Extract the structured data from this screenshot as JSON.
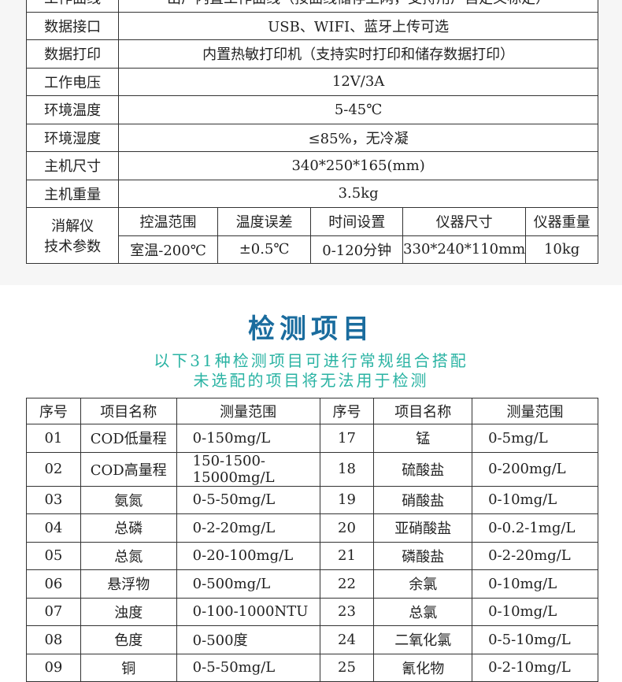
{
  "specs": {
    "rows": [
      {
        "label": "工作曲线",
        "value": "出厂内置工作曲线（按曲线储存上网，支持用户自定义标定）"
      },
      {
        "label": "数据接口",
        "value": "USB、WIFI、蓝牙上传可选"
      },
      {
        "label": "数据打印",
        "value": "内置热敏打印机（支持实时打印和储存数据打印）"
      },
      {
        "label": "工作电压",
        "value": "12V/3A"
      },
      {
        "label": "环境温度",
        "value": "5-45℃"
      },
      {
        "label": "环境湿度",
        "value": "≤85%，无冷凝"
      },
      {
        "label": "主机尺寸",
        "value": "340*250*165(mm)"
      },
      {
        "label": "主机重量",
        "value": "3.5kg"
      }
    ],
    "digester": {
      "label_1": "消解仪",
      "label_2": "技术参数",
      "headers": [
        "控温范围",
        "温度误差",
        "时间设置",
        "仪器尺寸",
        "仪器重量"
      ],
      "values": [
        "室温-200℃",
        "±0.5℃",
        "0-120分钟",
        "330*240*110mm",
        "10kg"
      ]
    }
  },
  "items": {
    "title": "检测项目",
    "subtitle_1": "以下31种检测项目可进行常规组合搭配",
    "subtitle_2": "未选配的项目将无法用于检测",
    "headers": [
      "序号",
      "项目名称",
      "测量范围",
      "序号",
      "项目名称",
      "测量范围"
    ],
    "rows": [
      [
        "01",
        "COD低量程",
        "0-150mg/L",
        "17",
        "锰",
        "0-5mg/L"
      ],
      [
        "02",
        "COD高量程",
        "150-1500-15000mg/L",
        "18",
        "硫酸盐",
        "0-200mg/L"
      ],
      [
        "03",
        "氨氮",
        "0-5-50mg/L",
        "19",
        "硝酸盐",
        "0-10mg/L"
      ],
      [
        "04",
        "总磷",
        "0-2-20mg/L",
        "20",
        "亚硝酸盐",
        "0-0.2-1mg/L"
      ],
      [
        "05",
        "总氮",
        "0-20-100mg/L",
        "21",
        "磷酸盐",
        "0-2-20mg/L"
      ],
      [
        "06",
        "悬浮物",
        "0-500mg/L",
        "22",
        "余氯",
        "0-10mg/L"
      ],
      [
        "07",
        "浊度",
        "0-100-1000NTU",
        "23",
        "总氯",
        "0-10mg/L"
      ],
      [
        "08",
        "色度",
        "0-500度",
        "24",
        "二氧化氯",
        "0-5-10mg/L"
      ],
      [
        "09",
        "铜",
        "0-5-50mg/L",
        "25",
        "氰化物",
        "0-2-10mg/L"
      ]
    ]
  }
}
